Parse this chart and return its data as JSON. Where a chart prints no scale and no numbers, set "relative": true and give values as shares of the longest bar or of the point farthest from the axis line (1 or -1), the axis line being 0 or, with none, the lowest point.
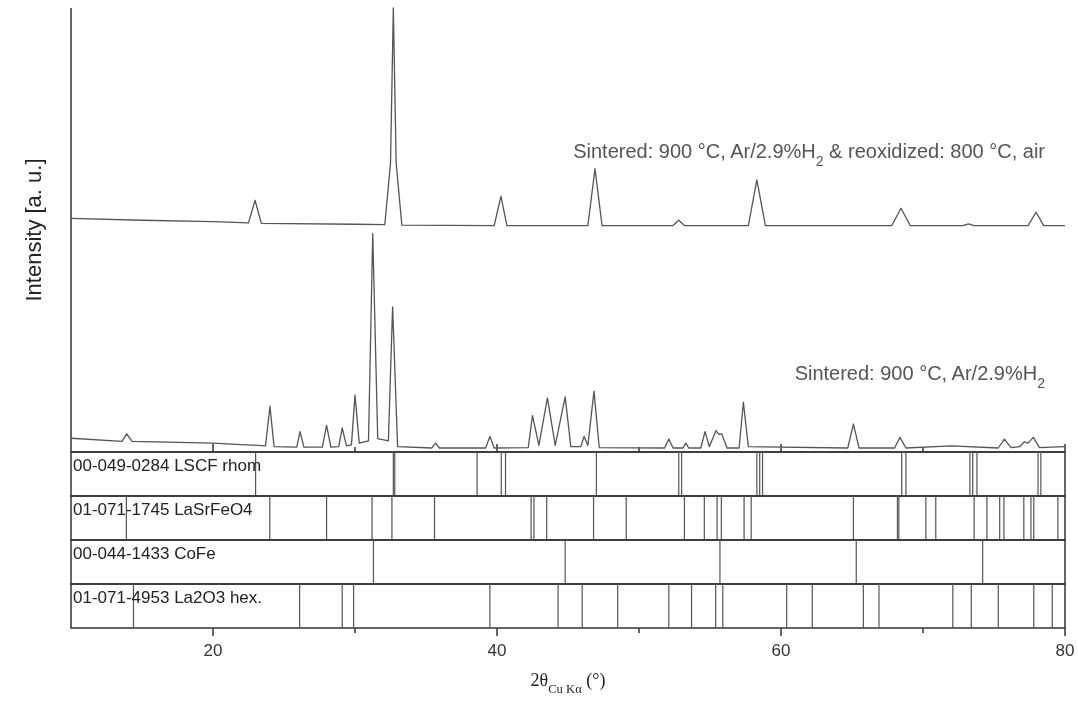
{
  "chart_data": [
    {
      "type": "line",
      "ylabel": "Intensity [a. u.]",
      "relative": true,
      "xlim": [
        10,
        80
      ],
      "xticks": [
        20,
        {
          "value": 30,
          "label": null
        },
        40,
        {
          "value": 50,
          "label": null
        },
        60,
        {
          "value": 70,
          "label": null
        },
        80
      ],
      "tick_labels": false,
      "series": [
        {
          "name": "Sintered: 900 °C, Ar/2.9%H$_{2}$ & reoxidized: 800 °C, air",
          "color": "#555555",
          "x": [
            10,
            15,
            20,
            22.5,
            22.96,
            23.4,
            30,
            32.1,
            32.5,
            32.7,
            32.9,
            33.3,
            39.8,
            40.28,
            40.7,
            46.4,
            46.9,
            47.4,
            52.4,
            52.8,
            53.2,
            57.7,
            58.3,
            58.9,
            67.8,
            68.45,
            69.1,
            72.8,
            73.2,
            73.6,
            77.4,
            77.96,
            78.5,
            80
          ],
          "values": [
            0.526,
            0.522,
            0.519,
            0.516,
            0.567,
            0.515,
            0.513,
            0.512,
            0.65,
            1.0,
            0.65,
            0.511,
            0.51,
            0.576,
            0.51,
            0.51,
            0.638,
            0.51,
            0.51,
            0.522,
            0.51,
            0.51,
            0.613,
            0.51,
            0.51,
            0.549,
            0.51,
            0.51,
            0.514,
            0.51,
            0.51,
            0.54,
            0.51,
            0.51
          ]
        },
        {
          "name": "Sintered: 900 °C, Ar/2.9%H$_{2}$",
          "color": "#555555",
          "x": [
            10,
            13.6,
            13.92,
            14.3,
            20,
            23.7,
            24.01,
            24.3,
            25.9,
            26.13,
            26.4,
            27.7,
            28.0,
            28.3,
            28.85,
            29.1,
            29.4,
            29.75,
            30.0,
            30.3,
            30.95,
            31.25,
            31.6,
            32.35,
            32.65,
            33.0,
            35.4,
            35.68,
            35.95,
            39.2,
            39.5,
            39.8,
            42.2,
            42.5,
            42.95,
            43.55,
            44.1,
            44.8,
            45.2,
            45.9,
            46.13,
            46.4,
            46.83,
            47.2,
            51.8,
            52.1,
            52.4,
            53.1,
            53.3,
            53.5,
            54.35,
            54.65,
            54.95,
            55.42,
            55.6,
            55.82,
            56.2,
            57.05,
            57.35,
            57.7,
            64.7,
            65.1,
            65.5,
            68.0,
            68.38,
            68.8,
            72.0,
            75.3,
            75.73,
            76.2,
            76.8,
            77.14,
            77.4,
            77.77,
            78.2,
            80
          ],
          "values": [
            0.031,
            0.024,
            0.041,
            0.024,
            0.02,
            0.014,
            0.103,
            0.012,
            0.011,
            0.046,
            0.011,
            0.011,
            0.06,
            0.011,
            0.012,
            0.054,
            0.014,
            0.016,
            0.128,
            0.02,
            0.025,
            0.492,
            0.03,
            0.025,
            0.327,
            0.012,
            0.009,
            0.02,
            0.009,
            0.009,
            0.035,
            0.009,
            0.01,
            0.082,
            0.015,
            0.122,
            0.015,
            0.124,
            0.012,
            0.012,
            0.035,
            0.015,
            0.137,
            0.01,
            0.009,
            0.029,
            0.009,
            0.009,
            0.02,
            0.009,
            0.009,
            0.046,
            0.012,
            0.048,
            0.04,
            0.041,
            0.009,
            0.009,
            0.112,
            0.012,
            0.009,
            0.063,
            0.009,
            0.009,
            0.033,
            0.009,
            0.014,
            0.009,
            0.029,
            0.01,
            0.012,
            0.023,
            0.02,
            0.033,
            0.01,
            0.012
          ]
        }
      ]
    },
    {
      "type": "bar",
      "title": "00-049-0284 LSCF rhom",
      "relative": true,
      "xlim": [
        10,
        80
      ],
      "color": "#555555",
      "x": [
        23.0,
        32.7,
        32.8,
        38.6,
        40.3,
        40.6,
        47.0,
        52.8,
        53.0,
        58.3,
        58.5,
        58.7,
        68.5,
        68.8,
        73.3,
        73.5,
        73.8,
        78.1,
        78.3
      ],
      "values": [
        1,
        1,
        1,
        1,
        1,
        1,
        1,
        1,
        1,
        1,
        1,
        1,
        1,
        1,
        1,
        1,
        1,
        1,
        1
      ]
    },
    {
      "type": "bar",
      "title": "01-071-1745 LaSrFeO4",
      "relative": true,
      "xlim": [
        10,
        80
      ],
      "color": "#555555",
      "x": [
        13.9,
        24.0,
        28.0,
        31.2,
        32.6,
        35.6,
        42.4,
        42.6,
        43.5,
        46.8,
        49.1,
        53.2,
        54.6,
        55.5,
        55.8,
        57.4,
        57.9,
        65.1,
        68.2,
        68.3,
        70.2,
        70.9,
        73.6,
        74.5,
        75.4,
        75.7,
        77.1,
        77.6,
        77.8,
        79.5
      ],
      "values": [
        1,
        1,
        1,
        1,
        1,
        1,
        1,
        1,
        1,
        1,
        1,
        1,
        1,
        1,
        1,
        1,
        1,
        1,
        1,
        1,
        1,
        1,
        1,
        1,
        1,
        1,
        1,
        1,
        1,
        1
      ]
    },
    {
      "type": "bar",
      "title": "00-044-1433 CoFe",
      "relative": true,
      "xlim": [
        10,
        80
      ],
      "color": "#555555",
      "x": [
        31.3,
        44.8,
        55.7,
        65.3,
        74.2
      ],
      "values": [
        1,
        1,
        1,
        1,
        1
      ]
    },
    {
      "type": "bar",
      "title": "01-071-4953 La2O3 hex.",
      "relative": true,
      "xlabel": "2θ$_{Cu Kα}$ (°)",
      "xlim": [
        10,
        80
      ],
      "xticks": [
        20,
        {
          "value": 30,
          "label": null
        },
        40,
        {
          "value": 50,
          "label": null
        },
        60,
        {
          "value": 70,
          "label": null
        },
        80
      ],
      "color": "#555555",
      "x": [
        14.4,
        26.1,
        29.1,
        29.9,
        39.5,
        44.3,
        46.0,
        48.5,
        52.1,
        53.7,
        55.4,
        55.9,
        60.4,
        62.2,
        65.8,
        66.9,
        72.1,
        73.4,
        75.3,
        77.8,
        79.1
      ],
      "values": [
        1,
        1,
        1,
        1,
        1,
        1,
        1,
        1,
        1,
        1,
        1,
        1,
        1,
        1,
        1,
        1,
        1,
        1,
        1,
        1,
        1
      ]
    }
  ]
}
